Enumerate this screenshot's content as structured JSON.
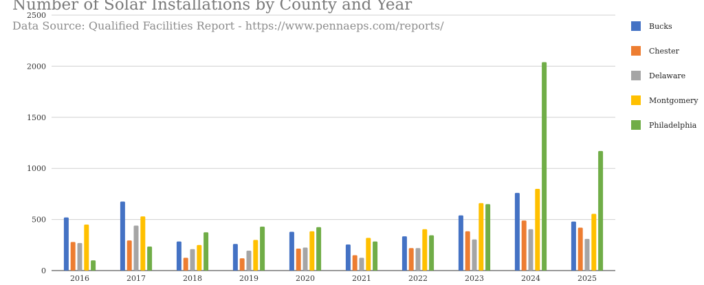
{
  "chart_data": {
    "type": "bar",
    "title": "Number of Solar Installations by County and Year",
    "subtitle": "Data Source: Qualified Facilities Report - https://www.pennaeps.com/reports/",
    "categories": [
      "2016",
      "2017",
      "2018",
      "2019",
      "2020",
      "2021",
      "2022",
      "2023",
      "2024",
      "2025"
    ],
    "series": [
      {
        "name": "Bucks",
        "color": "#4472c4",
        "values": [
          520,
          675,
          285,
          260,
          380,
          255,
          335,
          540,
          760,
          480
        ]
      },
      {
        "name": "Chester",
        "color": "#ed7d31",
        "values": [
          280,
          295,
          125,
          120,
          215,
          150,
          220,
          385,
          490,
          420
        ]
      },
      {
        "name": "Delaware",
        "color": "#a5a5a5",
        "values": [
          270,
          440,
          210,
          195,
          225,
          125,
          220,
          305,
          405,
          310
        ]
      },
      {
        "name": "Montgomery",
        "color": "#ffc000",
        "values": [
          450,
          530,
          250,
          300,
          385,
          320,
          405,
          660,
          800,
          555
        ]
      },
      {
        "name": "Philadelphia",
        "color": "#70ad47",
        "values": [
          100,
          235,
          375,
          430,
          425,
          285,
          345,
          650,
          2040,
          1170
        ]
      }
    ],
    "ylim": [
      0,
      2500
    ],
    "yticks": [
      "0",
      "500",
      "1000",
      "1500",
      "2000",
      "2500"
    ],
    "xlabel": "",
    "ylabel": "",
    "grid": true,
    "legend_position": "right"
  }
}
